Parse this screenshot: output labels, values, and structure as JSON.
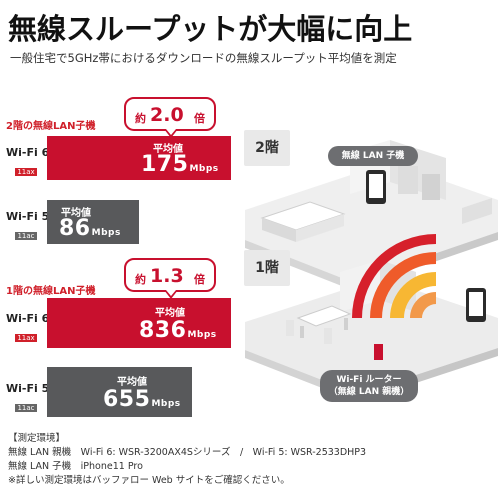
{
  "headline": "無線スループットが大幅に向上",
  "subline": "一般住宅で5GHz帯におけるダウンロードの無線スループット平均値を測定",
  "floor2": {
    "section_label": "2階の無線LAN子機",
    "callout": {
      "pre": "約",
      "value": "2.0",
      "post": "倍"
    },
    "wifi6": {
      "std": "Wi-Fi 6",
      "sub": "11ax",
      "caption": "平均値",
      "value": "175",
      "unit": "Mbps"
    },
    "wifi5": {
      "std": "Wi-Fi 5",
      "sub": "11ac",
      "caption": "平均値",
      "value": "86",
      "unit": "Mbps"
    }
  },
  "floor1": {
    "section_label": "1階の無線LAN子機",
    "callout": {
      "pre": "約",
      "value": "1.3",
      "post": "倍"
    },
    "wifi6": {
      "std": "Wi-Fi 6",
      "sub": "11ax",
      "caption": "平均値",
      "value": "836",
      "unit": "Mbps"
    },
    "wifi5": {
      "std": "Wi-Fi 5",
      "sub": "11ac",
      "caption": "平均値",
      "value": "655",
      "unit": "Mbps"
    }
  },
  "illustration": {
    "floor2_label": "2階",
    "floor1_label": "1階",
    "client_bubble": "無線 LAN 子機",
    "router_bubble_line1": "Wi-Fi ルーター",
    "router_bubble_line2": "（無線 LAN 親機）"
  },
  "notes": {
    "heading": "【測定環境】",
    "line1": "無線 LAN 親機　Wi-Fi 6: WSR-3200AX4Sシリーズ　/　Wi-Fi 5: WSR-2533DHP3",
    "line2": "無線 LAN 子機　iPhone11 Pro",
    "line3": "※詳しい測定環境はバッファロー Web サイトをご確認ください。"
  },
  "colors": {
    "accent": "#c8102e",
    "bar_gray": "#58595b",
    "box_bg": "#e9e9e9"
  }
}
